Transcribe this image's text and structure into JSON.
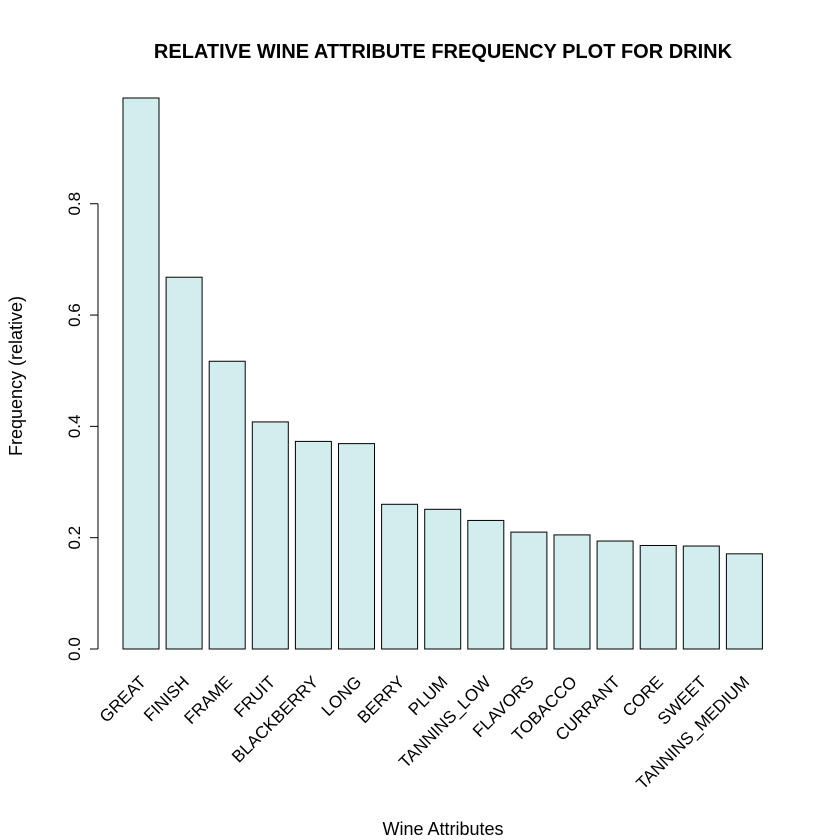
{
  "chart_data": {
    "type": "bar",
    "title": "RELATIVE WINE ATTRIBUTE FREQUENCY PLOT FOR DRINK",
    "xlabel": "Wine Attributes",
    "ylabel": "Frequency (relative)",
    "categories": [
      "GREAT",
      "FINISH",
      "FRAME",
      "FRUIT",
      "BLACKBERRY",
      "LONG",
      "BERRY",
      "PLUM",
      "TANNINS_LOW",
      "FLAVORS",
      "TOBACCO",
      "CURRANT",
      "CORE",
      "SWEET",
      "TANNINS_MEDIUM"
    ],
    "values": [
      0.99,
      0.668,
      0.517,
      0.408,
      0.373,
      0.369,
      0.26,
      0.251,
      0.231,
      0.21,
      0.205,
      0.194,
      0.186,
      0.185,
      0.171
    ],
    "yticks": [
      0.0,
      0.2,
      0.4,
      0.6,
      0.8
    ],
    "ytick_labels": [
      "0.0",
      "0.2",
      "0.4",
      "0.6",
      "0.8"
    ],
    "ylim": [
      0,
      0.99
    ],
    "bar_color": "#d1eded",
    "bar_border_color": "#000000",
    "grid": false,
    "legend": "none"
  }
}
